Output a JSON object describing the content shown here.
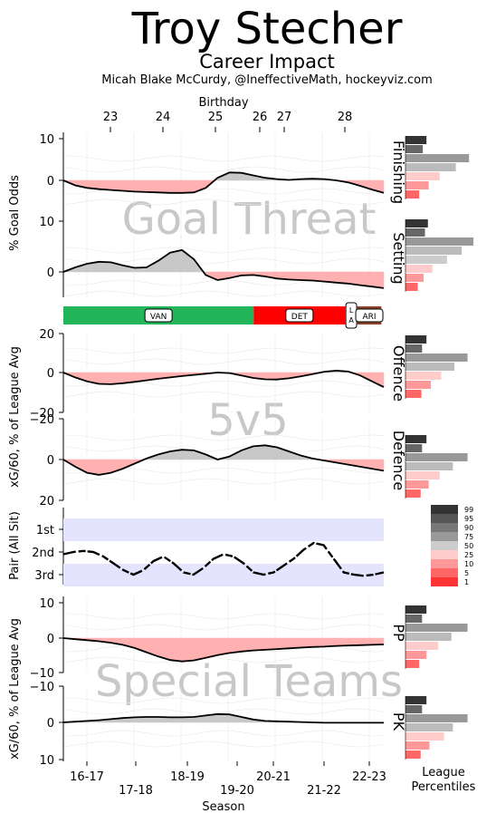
{
  "header": {
    "title": "Troy Stecher",
    "subtitle": "Career Impact",
    "credit": "Micah Blake McCurdy, @IneffectiveMath, hockeyviz.com"
  },
  "colors": {
    "good_dark": "#333333",
    "good_mid": "#777777",
    "good_light": "#bbbbbb",
    "bad_light": "#ffcccc",
    "bad_mid": "#ff9999",
    "bad_dark": "#ff3333",
    "line": "#000000",
    "band": "#e4e4ff",
    "team_van": "#22b55a",
    "team_det": "#ff0000",
    "team_la": "#ffffff",
    "team_ari": "#8b4226"
  },
  "chart_data": {
    "type": "line",
    "top_axis": {
      "label": "Birthday",
      "ticks": [
        "23",
        "24",
        "25",
        "26",
        "27",
        "28"
      ]
    },
    "bottom_axis": {
      "label": "Season",
      "ticks_upper": [
        "16-17",
        "18-19",
        "20-21",
        "22-23"
      ],
      "ticks_lower": [
        "17-18",
        "19-20",
        "21-22"
      ]
    },
    "section_labels": [
      "Goal Threat",
      "5v5",
      "Special Teams"
    ],
    "panels": [
      {
        "name": "Finishing",
        "ylabel": "% Goal Odds",
        "yticks": [
          "10",
          "0"
        ],
        "ylim": [
          10,
          -5
        ],
        "values": [
          0,
          -1.2,
          -1.8,
          -2.1,
          -2.3,
          -2.5,
          -2.7,
          -2.8,
          -2.9,
          -3.0,
          -3.0,
          -2.9,
          -1.8,
          0.6,
          1.9,
          1.8,
          1.2,
          0.6,
          0.3,
          0.1,
          0.3,
          0.4,
          0.3,
          0.0,
          -0.5,
          -1.3,
          -2.2,
          -3.0
        ],
        "percentiles": [
          96,
          91,
          80,
          62,
          40,
          25,
          12
        ]
      },
      {
        "name": "Setting",
        "ylabel": "",
        "yticks": [
          "10",
          "0"
        ],
        "ylim": [
          10,
          -5
        ],
        "values": [
          0,
          0.9,
          1.6,
          2.0,
          1.9,
          1.3,
          0.8,
          0.9,
          2.2,
          3.8,
          4.3,
          2.5,
          -0.6,
          -1.6,
          -1.2,
          -0.7,
          -0.6,
          -0.9,
          -1.3,
          -1.5,
          -1.6,
          -1.7,
          -1.9,
          -2.1,
          -2.3,
          -2.6,
          -2.9,
          -3.2
        ],
        "percentiles": [
          98,
          94,
          86,
          70,
          50,
          30,
          18,
          10
        ]
      },
      {
        "name": "Offence",
        "ylabel": "xG/60, % of League Avg",
        "yticks": [
          "20",
          "0",
          "−20"
        ],
        "ylim": [
          20,
          -20
        ],
        "values": [
          0,
          -2.5,
          -4.5,
          -5.8,
          -6.0,
          -5.5,
          -4.8,
          -4.0,
          -3.2,
          -2.5,
          -1.8,
          -1.2,
          -0.6,
          0.0,
          -0.3,
          -1.5,
          -2.8,
          -3.5,
          -3.6,
          -3.0,
          -2.0,
          -0.8,
          0.4,
          1.0,
          0.5,
          -1.5,
          -4.5,
          -7.5
        ],
        "percentiles": [
          96,
          90,
          78,
          60,
          42,
          28,
          15
        ]
      },
      {
        "name": "Defence",
        "ylabel": "",
        "yticks": [
          "−20",
          "0",
          "20"
        ],
        "ylim": [
          -20,
          20
        ],
        "values": [
          0,
          3.5,
          6.5,
          7.5,
          6.5,
          4.5,
          2.0,
          -0.5,
          -2.5,
          -4.0,
          -4.8,
          -4.5,
          -2.5,
          0.0,
          -1.5,
          -4.5,
          -6.5,
          -7.0,
          -6.0,
          -4.0,
          -2.0,
          -0.5,
          0.5,
          1.5,
          2.5,
          3.5,
          4.5,
          5.5
        ],
        "percentiles": [
          96,
          90,
          78,
          58,
          40,
          25,
          14
        ]
      },
      {
        "name": "PP",
        "ylabel": "xG/60, % of League Avg",
        "yticks": [
          "10",
          "0",
          "−10"
        ],
        "ylim": [
          12,
          -10
        ],
        "values": [
          0,
          -0.3,
          -0.6,
          -0.9,
          -1.3,
          -1.9,
          -2.8,
          -4.0,
          -5.2,
          -6.2,
          -6.6,
          -6.3,
          -5.6,
          -4.8,
          -4.2,
          -3.8,
          -3.5,
          -3.3,
          -3.1,
          -2.9,
          -2.7,
          -2.5,
          -2.4,
          -2.2,
          -2.1,
          -2.0,
          -1.9,
          -1.8
        ],
        "percentiles": [
          96,
          90,
          78,
          56,
          38,
          22,
          12
        ]
      },
      {
        "name": "PK",
        "ylabel": "xG/60, % of League Avg",
        "yticks": [
          "−10",
          "0",
          "10"
        ],
        "ylim": [
          -12,
          10
        ],
        "values": [
          0,
          -0.2,
          -0.4,
          -0.6,
          -0.9,
          -1.2,
          -1.4,
          -1.5,
          -1.5,
          -1.4,
          -1.4,
          -1.5,
          -1.9,
          -2.3,
          -2.2,
          -1.5,
          -0.8,
          -0.4,
          -0.3,
          -0.2,
          -0.1,
          0.0,
          0.1,
          0.1,
          0.1,
          0.1,
          0.1,
          0.1
        ],
        "percentiles": [
          96,
          90,
          78,
          58,
          46,
          26,
          14
        ]
      }
    ],
    "teams": [
      {
        "label": "VAN",
        "start": 2016.65,
        "end": 2020.6,
        "color": "#22b55a"
      },
      {
        "label": "DET",
        "start": 2020.6,
        "end": 2022.5,
        "color": "#ff0000"
      },
      {
        "label": "L\nA",
        "start": 2022.5,
        "end": 2022.75,
        "color": "#ffffff"
      },
      {
        "label": "ARI",
        "start": 2022.75,
        "end": 2023.25,
        "color": "#8b4226"
      }
    ],
    "pair": {
      "ylabel": "Pair (All Sit)",
      "yticks": [
        "1st",
        "2nd",
        "3rd"
      ],
      "series": [
        [
          2.1,
          2.0,
          1.95,
          2.0,
          2.2,
          2.5,
          2.8,
          3.0,
          2.8,
          2.4,
          2.2,
          2.5,
          2.9,
          3.0,
          2.7,
          2.3,
          2.1,
          2.2,
          2.5,
          2.9,
          3.0,
          2.9,
          2.6,
          2.3,
          1.9,
          1.6,
          1.7,
          2.3,
          2.9,
          3.0,
          3.05,
          3.0,
          2.9
        ]
      ]
    },
    "legend": {
      "title": "League Percentiles",
      "labels": [
        "99",
        "95",
        "90",
        "75",
        "50",
        "25",
        "10",
        "5",
        "1"
      ]
    }
  }
}
